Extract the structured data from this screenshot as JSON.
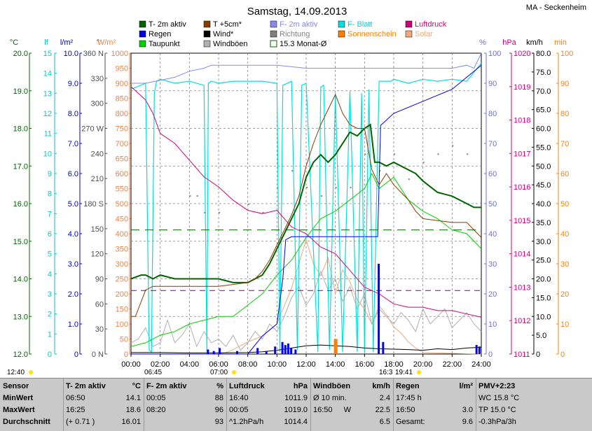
{
  "header": {
    "title": "Samstag, 14.09.2013",
    "station": "MA - Seckenheim"
  },
  "legend": [
    {
      "label": "T- 2m aktiv",
      "color": "#006400",
      "text_color": "#000000"
    },
    {
      "label": "T +5cm*",
      "color": "#8b3a00",
      "text_color": "#000000"
    },
    {
      "label": "F- 2m aktiv",
      "color": "#8888ee",
      "text_color": "#8888ee"
    },
    {
      "label": "F- Blatt",
      "color": "#00e0e0",
      "text_color": "#00d0d0"
    },
    {
      "label": "Luftdruck",
      "color": "#d0007a",
      "text_color": "#d0007a"
    },
    {
      "label": "Regen",
      "color": "#0000e0",
      "text_color": "#000000"
    },
    {
      "label": "Wind*",
      "color": "#000000",
      "text_color": "#000000"
    },
    {
      "label": "Richtung",
      "color": "#808080",
      "text_color": "#808080"
    },
    {
      "label": "Sonnenschein",
      "color": "#ff8000",
      "text_color": "#ff8000"
    },
    {
      "label": "Solar",
      "color": "#f0a878",
      "text_color": "#f0a878"
    },
    {
      "label": "Taupunkt",
      "color": "#00d000",
      "text_color": "#000000"
    },
    {
      "label": "Windböen",
      "color": "#b0b0b0",
      "text_color": "#000000"
    },
    {
      "label": "15.3 Monat-Ø",
      "color": "#006400",
      "text_color": "#000000"
    }
  ],
  "axis_titles": {
    "temp": "°C",
    "leaf": "lf",
    "rain": "l/m²",
    "dir": "°",
    "solar": "W/m²",
    "hum": "%",
    "press": "hPa",
    "wind": "km/h",
    "min": "min"
  },
  "markers": {
    "start_time": "12:40",
    "sunrise": "06:45",
    "sunset": "19:41",
    "mid1": "07:00",
    "mid2": "16:3"
  },
  "chart_data": {
    "type": "line",
    "x_ticks": [
      "00:00",
      "02:00",
      "04:00",
      "06:00",
      "08:00",
      "10:00",
      "12:00",
      "14:00",
      "16:00",
      "18:00",
      "20:00",
      "22:00",
      "24:00"
    ],
    "xlim": [
      0,
      24
    ],
    "axes": {
      "temp": {
        "ylim": [
          12.0,
          20.0
        ],
        "ticks": [
          "20.0",
          "19.0",
          "18.0",
          "17.0",
          "16.0",
          "15.0",
          "14.0",
          "13.0",
          "12.0"
        ],
        "color": "#006400"
      },
      "leaf": {
        "ylim": [
          0,
          15
        ],
        "ticks": [
          "15",
          "14",
          "13",
          "12",
          "11",
          "10",
          "9",
          "8",
          "7",
          "6",
          "5",
          "4",
          "3",
          "2",
          "1",
          "0"
        ],
        "color": "#00c8c8"
      },
      "rain": {
        "ylim": [
          0,
          10
        ],
        "ticks": [
          "10.0",
          "9.0",
          "8.0",
          "7.0",
          "6.0",
          "5.0",
          "4.0",
          "3.0",
          "2.0",
          "1.0",
          "0"
        ],
        "color": "#0000c0"
      },
      "dir": {
        "ticks": [
          "360 N",
          "330",
          "300",
          "270 W",
          "240",
          "210",
          "180 S",
          "150",
          "120",
          "90",
          "60",
          "30",
          "0 N"
        ],
        "color": "#505050"
      },
      "solar": {
        "ylim": [
          0,
          1000
        ],
        "ticks": [
          "1000",
          "950",
          "900",
          "850",
          "800",
          "750",
          "700",
          "650",
          "600",
          "550",
          "500",
          "450",
          "400",
          "350",
          "300",
          "250",
          "200",
          "150",
          "100",
          "50",
          "0"
        ],
        "color": "#f08040"
      },
      "hum": {
        "ylim": [
          0,
          100
        ],
        "ticks": [
          "100",
          "90",
          "80",
          "70",
          "60",
          "50",
          "40",
          "30",
          "20",
          "10",
          "0"
        ],
        "color": "#7070d0"
      },
      "press": {
        "ylim": [
          1011,
          1020
        ],
        "ticks": [
          "1020",
          "1019",
          "1018",
          "1017",
          "1016",
          "1015",
          "1014",
          "1013",
          "1012",
          "1011"
        ],
        "color": "#d0007a"
      },
      "wind": {
        "ylim": [
          0,
          80
        ],
        "ticks": [
          "80.0",
          "75.0",
          "70.0",
          "65.0",
          "60.0",
          "55.0",
          "50.0",
          "45.0",
          "40.0",
          "35.0",
          "30.0",
          "25.0",
          "20.0",
          "15.0",
          "10.0",
          "5.0",
          "0"
        ],
        "color": "#000000"
      },
      "min": {
        "ylim": [
          0,
          100
        ],
        "ticks": [
          "100",
          "90",
          "80",
          "70",
          "60",
          "50",
          "40",
          "30",
          "20",
          "10",
          "0"
        ],
        "color": "#ff8000"
      }
    },
    "series": [
      {
        "name": "T- 2m aktiv",
        "axis": "temp",
        "color": "#006400",
        "width": 2,
        "x": [
          0,
          0.7,
          1,
          1.5,
          2,
          3,
          4,
          5,
          6,
          7,
          7.5,
          8,
          8.5,
          9,
          9.5,
          10,
          10.5,
          11,
          11.5,
          12,
          12.5,
          13,
          13.5,
          14,
          14.5,
          15,
          15.5,
          16,
          16.4,
          16.7,
          17,
          17.5,
          18,
          18.5,
          19,
          19.5,
          20,
          21,
          22,
          23,
          23.5,
          24
        ],
        "y": [
          14.0,
          14.1,
          14.1,
          14.0,
          14.1,
          14.0,
          14.0,
          14.0,
          14.0,
          13.9,
          13.9,
          13.9,
          14.0,
          14.1,
          14.4,
          14.8,
          15.2,
          15.6,
          16.0,
          16.7,
          17.1,
          17.3,
          17.1,
          17.3,
          17.6,
          17.9,
          17.8,
          18.0,
          18.1,
          17.1,
          17.1,
          17.0,
          17.1,
          17.0,
          16.9,
          16.8,
          16.6,
          16.3,
          16.2,
          16.0,
          15.9,
          15.9
        ]
      },
      {
        "name": "Taupunkt",
        "axis": "temp",
        "color": "#00d000",
        "width": 1,
        "x": [
          0,
          1,
          2,
          3,
          4,
          5,
          6,
          7,
          8,
          9,
          10,
          11,
          12,
          13,
          14,
          15,
          16,
          16.5,
          17,
          18,
          19,
          20,
          21,
          22,
          23,
          24
        ],
        "y": [
          12.2,
          12.3,
          12.5,
          12.6,
          12.8,
          12.9,
          13.0,
          13.0,
          13.3,
          13.6,
          14.1,
          14.5,
          15.1,
          15.6,
          15.8,
          16.1,
          16.4,
          16.8,
          16.4,
          16.7,
          16.1,
          15.8,
          15.6,
          15.3,
          15.2,
          14.8
        ]
      },
      {
        "name": "T +5cm*",
        "axis": "temp",
        "color": "#8b3a00",
        "width": 1,
        "x": [
          0,
          0.3,
          0.7,
          1,
          1.5,
          2,
          4,
          6,
          8,
          8.5,
          9,
          9.5,
          10,
          10.5,
          11,
          11.5,
          12,
          12.5,
          13,
          13.5,
          14,
          14.5,
          15,
          15.5,
          16,
          16.5,
          17,
          17.5,
          18,
          18.5,
          19,
          19.5,
          20,
          22,
          23,
          24
        ],
        "y": [
          13.0,
          13.0,
          13.4,
          13.7,
          13.8,
          13.8,
          13.8,
          13.8,
          13.9,
          14.0,
          14.2,
          14.5,
          14.9,
          15.3,
          15.7,
          16.2,
          17.0,
          17.6,
          18.1,
          18.5,
          18.9,
          18.4,
          18.1,
          18.0,
          18.0,
          16.9,
          16.5,
          16.8,
          16.5,
          16.3,
          16.1,
          15.8,
          15.6,
          15.5,
          15.5,
          15.1
        ]
      },
      {
        "name": "F- 2m aktiv",
        "axis": "hum",
        "color": "#8888ee",
        "width": 1,
        "x": [
          0,
          1,
          2,
          3,
          4,
          5,
          5.5,
          8,
          10,
          12,
          14,
          16,
          18,
          20,
          22,
          23,
          23.5,
          24
        ],
        "y": [
          90,
          90,
          91,
          92,
          94,
          95,
          96,
          96,
          96,
          95,
          95,
          95,
          95,
          95,
          95,
          96,
          95,
          100
        ]
      },
      {
        "name": "Luftdruck",
        "axis": "press",
        "color": "#d0007a",
        "width": 1,
        "x": [
          0,
          0.5,
          1,
          1.5,
          2,
          3,
          4,
          5,
          6,
          7,
          8,
          9,
          10,
          11,
          12,
          13,
          14,
          15,
          16,
          17,
          18,
          19,
          20,
          21,
          22,
          23,
          24
        ],
        "y": [
          1019.0,
          1018.8,
          1018.6,
          1018.2,
          1017.6,
          1017.3,
          1016.8,
          1016.3,
          1016.0,
          1015.6,
          1015.3,
          1015.2,
          1015.3,
          1014.8,
          1014.6,
          1014.2,
          1014.0,
          1013.5,
          1013.0,
          1012.8,
          1012.5,
          1012.4,
          1012.4,
          1012.3,
          1012.3,
          1012.2,
          1012.1
        ]
      },
      {
        "name": "Regen",
        "axis": "rain",
        "color": "#0000e0",
        "width": 1,
        "x": [
          0,
          8,
          9,
          10,
          10.4,
          10.6,
          11,
          12,
          12.5,
          16.9,
          17.1,
          18,
          19,
          20,
          21,
          22,
          23,
          24
        ],
        "y": [
          0,
          0,
          0.6,
          1.0,
          2.5,
          3.8,
          3.9,
          3.9,
          3.9,
          3.9,
          7.6,
          8.0,
          8.2,
          8.4,
          8.6,
          8.8,
          9.2,
          9.6
        ]
      },
      {
        "name": "15.3 Monat-Ø",
        "axis": "temp",
        "color": "#006400",
        "width": 1,
        "dash": "12,8",
        "x": [
          0,
          24
        ],
        "y": [
          15.3,
          15.3
        ]
      },
      {
        "name": "Luftdruck-Ø",
        "axis": "press",
        "color": "#800080",
        "width": 1,
        "dash": "8,6",
        "x": [
          0,
          24
        ],
        "y": [
          1012.9,
          1012.9
        ]
      }
    ],
    "f_blatt": {
      "axis": "leaf",
      "color": "#00e0e0",
      "x": [
        0,
        1,
        1.25,
        1.4,
        1.6,
        1.75,
        2,
        3,
        4,
        5,
        5.2,
        5.3,
        5.5,
        6,
        7,
        8,
        9,
        10,
        10.2,
        10.4,
        11,
        11.4,
        11.7,
        12,
        12.8,
        13,
        13.2,
        13.6,
        14,
        14.5,
        15,
        15.5,
        15.8,
        16,
        16.3,
        16.6,
        17,
        17.8,
        18,
        19,
        20,
        21,
        22,
        23,
        24
      ],
      "y": [
        13.2,
        13.5,
        0.2,
        0.1,
        13.0,
        13.6,
        13.7,
        13.5,
        13.6,
        13.4,
        0.1,
        13.5,
        13.6,
        13.5,
        13.6,
        13.6,
        13.6,
        13.5,
        0.1,
        13.4,
        13.6,
        0.2,
        13.4,
        13.5,
        0.1,
        13.3,
        13.4,
        0.2,
        13.0,
        0.1,
        13.1,
        0.1,
        13.0,
        0.1,
        13.2,
        0.1,
        13.6,
        13.6,
        13.7,
        13.5,
        13.7,
        13.6,
        13.7,
        13.6,
        14.5
      ]
    },
    "solar": {
      "axis": "solar",
      "color": "#f0a878",
      "x": [
        0,
        6,
        6.5,
        7,
        8,
        9,
        10,
        10.5,
        11,
        11.5,
        12,
        12.5,
        13,
        13.5,
        14,
        14.5,
        15,
        15.5,
        16,
        16.5,
        17,
        17.5,
        18,
        18.5,
        19,
        19.5,
        20,
        24
      ],
      "y": [
        0,
        0,
        5,
        15,
        40,
        60,
        100,
        160,
        220,
        300,
        380,
        300,
        260,
        320,
        200,
        280,
        240,
        180,
        150,
        100,
        160,
        130,
        90,
        70,
        40,
        20,
        5,
        0
      ]
    },
    "windboen": {
      "axis": "wind",
      "color": "#b0b0b0",
      "x": [
        0,
        0.5,
        1,
        1.5,
        2,
        2.5,
        3,
        3.5,
        4,
        4.5,
        5,
        5.5,
        6,
        6.5,
        7,
        7.5,
        8,
        8.5,
        9,
        9.5,
        10,
        10.5,
        11,
        11.5,
        12,
        12.5,
        13,
        13.5,
        14,
        14.5,
        15,
        15.5,
        16,
        16.5,
        17,
        17.5,
        18,
        18.5,
        19,
        19.5,
        20,
        20.5,
        21,
        21.5,
        22,
        22.5,
        23,
        23.5,
        24
      ],
      "y": [
        3,
        4,
        7,
        2,
        3,
        9,
        3,
        5,
        8,
        2,
        6,
        3,
        4,
        2,
        5,
        1,
        3,
        6,
        4,
        8,
        6,
        10,
        15,
        18,
        13,
        16,
        22,
        17,
        20,
        14,
        18,
        12,
        16,
        8,
        12,
        10,
        8,
        11,
        9,
        6,
        12,
        8,
        10,
        12,
        7,
        9,
        11,
        8,
        6
      ]
    },
    "wind": {
      "axis": "wind",
      "color": "#000000",
      "x": [
        0,
        2,
        4,
        6,
        8,
        9,
        10,
        11,
        12,
        13,
        14,
        15,
        16,
        17,
        18,
        19,
        20,
        21,
        22,
        23,
        24
      ],
      "y": [
        0.4,
        0.4,
        0.3,
        0.3,
        0.4,
        0.6,
        1.0,
        1.6,
        2.2,
        2.4,
        2.2,
        2.0,
        1.6,
        1.4,
        1.3,
        1.2,
        1.0,
        1.4,
        1.2,
        1.6,
        1.8
      ]
    },
    "rain_bars": {
      "axis": "rain",
      "color": "#0000ff",
      "x": [
        5.2,
        5.6,
        6.0,
        7.2,
        8.6,
        9.2,
        9.8,
        10.3,
        10.5,
        10.7,
        10.9,
        11.2,
        16.9,
        17.2,
        23.6,
        23.8
      ],
      "y": [
        0.15,
        0.1,
        0.2,
        0.1,
        0.2,
        0.1,
        0.25,
        0.4,
        0.3,
        0.35,
        0.2,
        0.15,
        3.0,
        0.4,
        0.3,
        0.25
      ]
    },
    "sun_bars": {
      "axis": "min",
      "color": "#ff8000",
      "x": [
        13.9,
        14.0
      ],
      "y": [
        5,
        5
      ]
    },
    "richtung": {
      "axis": "dir",
      "color": "#808080",
      "x": [
        4,
        4.5,
        5,
        6,
        8,
        9,
        10,
        11,
        12,
        13,
        14,
        15,
        16,
        17,
        18,
        19,
        20,
        21,
        22,
        23
      ],
      "y": [
        190,
        190,
        170,
        170,
        180,
        170,
        200,
        220,
        200,
        190,
        200,
        200,
        240,
        220,
        240,
        210,
        230,
        240,
        250,
        240
      ]
    }
  },
  "table": {
    "columns": [
      {
        "title": "Sensor",
        "unit": "",
        "rows": [
          [
            "MinWert",
            "",
            ""
          ],
          [
            "MaxWert",
            "",
            ""
          ],
          [
            "Durchschnitt",
            "",
            ""
          ]
        ]
      },
      {
        "title": "T- 2m aktiv",
        "unit": "°C",
        "rows": [
          [
            "06:50",
            "",
            "14.1"
          ],
          [
            "16:25",
            "",
            "18.6"
          ],
          [
            "(+ 0.71 )",
            "",
            "16.01"
          ]
        ]
      },
      {
        "title": "F- 2m aktiv",
        "unit": "%",
        "rows": [
          [
            "00:05",
            "",
            "88"
          ],
          [
            "08:20",
            "",
            "96"
          ],
          [
            "",
            "",
            "93"
          ]
        ]
      },
      {
        "title": "Luftdruck",
        "unit": "hPa",
        "rows": [
          [
            "16:40",
            "",
            "1011.9"
          ],
          [
            "00:05",
            "",
            "1019.0"
          ],
          [
            "^1.2hPa/h",
            "",
            "1014.4"
          ]
        ]
      },
      {
        "title": "Windböen",
        "unit": "km/h",
        "rows": [
          [
            "Ø 10 min.",
            "",
            "2.4"
          ],
          [
            "16:50",
            "W",
            "22.5"
          ],
          [
            "",
            "",
            "6.5"
          ]
        ]
      },
      {
        "title": "Regen",
        "unit": "l/m²",
        "rows": [
          [
            "17:45 h",
            "",
            ""
          ],
          [
            "16:50",
            "",
            "3.0"
          ],
          [
            "Gesamt:",
            "",
            "9.6"
          ]
        ]
      },
      {
        "title": "PMV+2:23",
        "unit": "",
        "rows": [
          [
            "WC 15.8 °C",
            "",
            ""
          ],
          [
            "TP 15.0 °C",
            "",
            ""
          ],
          [
            "-0.3hPa/3h",
            "",
            ""
          ]
        ]
      }
    ]
  }
}
